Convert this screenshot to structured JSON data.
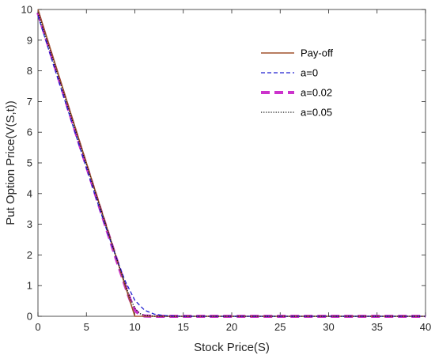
{
  "chart_data": {
    "type": "line",
    "xlabel": "Stock Price(S)",
    "ylabel": "Put Option Price(V(S,t))",
    "xlim": [
      0,
      40
    ],
    "ylim": [
      0,
      10
    ],
    "xticks": [
      0,
      5,
      10,
      15,
      20,
      25,
      30,
      35,
      40
    ],
    "yticks": [
      0,
      1,
      2,
      3,
      4,
      5,
      6,
      7,
      8,
      9,
      10
    ],
    "grid": false,
    "legend_position": "top-right",
    "series": [
      {
        "name": "Pay-off",
        "color": "#a0522d",
        "style": "solid",
        "points": [
          [
            0,
            10
          ],
          [
            10,
            0
          ],
          [
            40,
            0
          ]
        ]
      },
      {
        "name": "a=0",
        "color": "#2020d0",
        "style": "dashed",
        "points": [
          [
            0,
            9.8
          ],
          [
            2,
            7.8
          ],
          [
            4,
            5.82
          ],
          [
            6,
            3.85
          ],
          [
            7,
            2.9
          ],
          [
            8,
            1.98
          ],
          [
            9,
            1.15
          ],
          [
            10,
            0.52
          ],
          [
            11,
            0.2
          ],
          [
            12,
            0.07
          ],
          [
            13,
            0.025
          ],
          [
            14,
            0.008
          ],
          [
            15,
            0.002
          ],
          [
            16,
            0
          ],
          [
            40,
            0
          ]
        ]
      },
      {
        "name": "a=0.02",
        "color": "#cc33cc",
        "style": "thick-dashed",
        "points": [
          [
            0,
            9.9
          ],
          [
            2,
            7.9
          ],
          [
            4,
            5.9
          ],
          [
            6,
            3.92
          ],
          [
            8,
            1.95
          ],
          [
            9,
            1.0
          ],
          [
            9.5,
            0.55
          ],
          [
            10,
            0.2
          ],
          [
            10.5,
            0.06
          ],
          [
            11,
            0.01
          ],
          [
            12,
            0
          ],
          [
            40,
            0
          ]
        ]
      },
      {
        "name": "a=0.05",
        "color": "#111111",
        "style": "dotted",
        "points": [
          [
            0,
            9.9
          ],
          [
            2,
            7.92
          ],
          [
            4,
            5.94
          ],
          [
            6,
            3.96
          ],
          [
            8,
            2.0
          ],
          [
            9,
            1.05
          ],
          [
            9.5,
            0.6
          ],
          [
            10,
            0.26
          ],
          [
            10.5,
            0.09
          ],
          [
            11,
            0.03
          ],
          [
            12,
            0.005
          ],
          [
            13,
            0
          ],
          [
            40,
            0
          ]
        ]
      }
    ]
  }
}
